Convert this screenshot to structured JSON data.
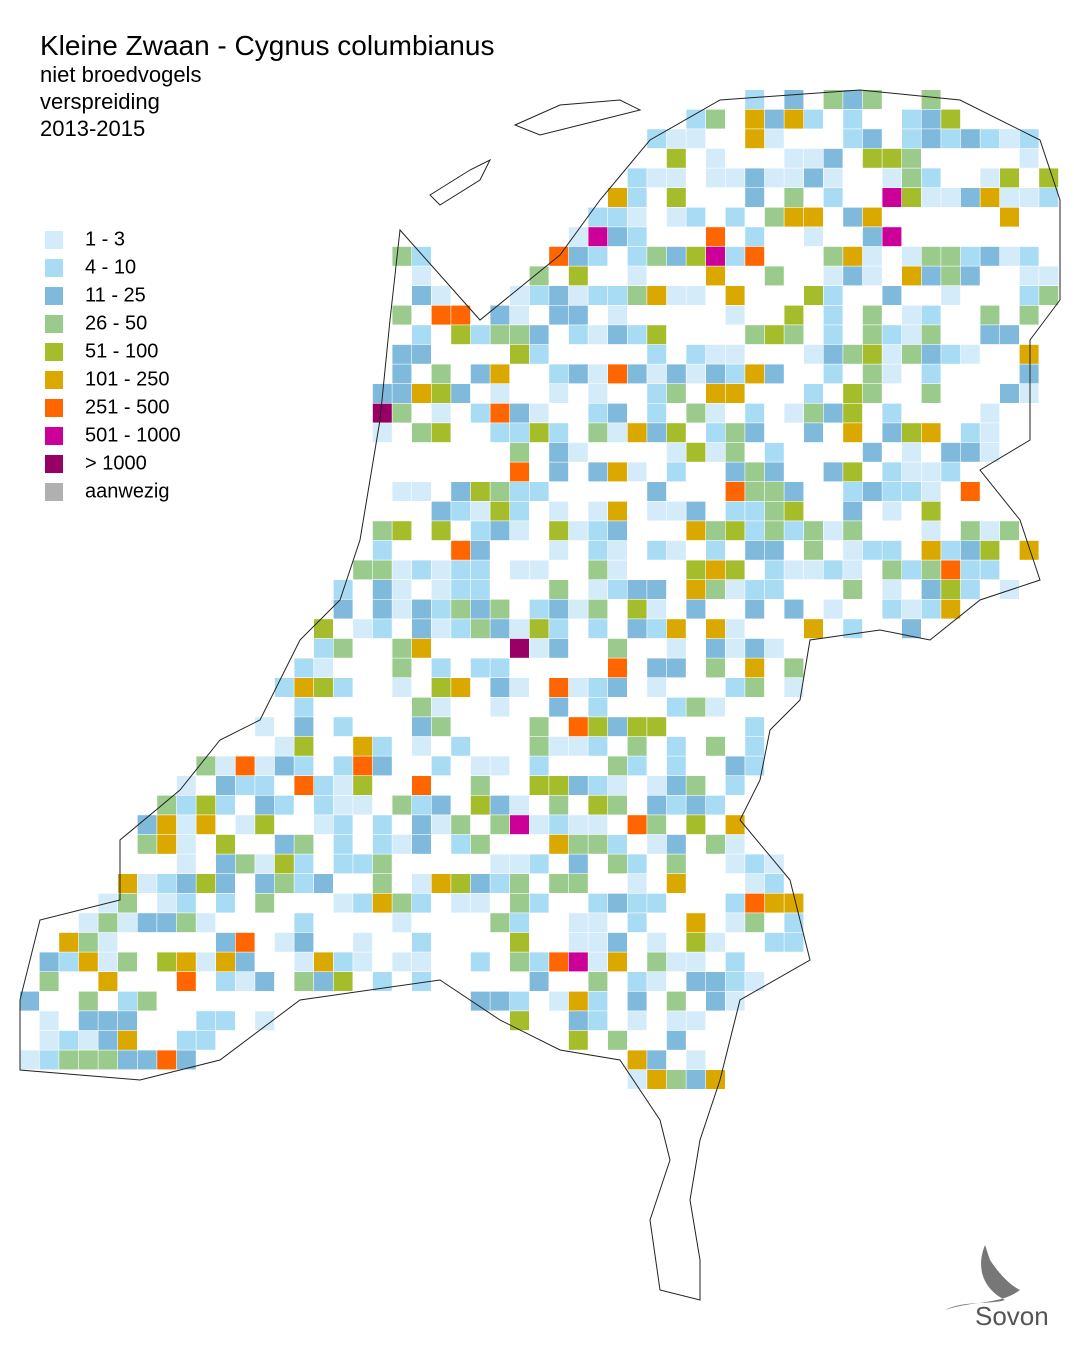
{
  "title": "Kleine Zwaan - Cygnus columbianus",
  "subtitle": [
    "niet broedvogels",
    "verspreiding",
    "2013-2015"
  ],
  "legend": [
    {
      "label": "1 - 3",
      "color": "#d4ebfa"
    },
    {
      "label": "4 - 10",
      "color": "#a8dcf5"
    },
    {
      "label": "11 - 25",
      "color": "#7fb9dc"
    },
    {
      "label": "26 - 50",
      "color": "#9acb8c"
    },
    {
      "label": "51 - 100",
      "color": "#a6bd2b"
    },
    {
      "label": "101 - 250",
      "color": "#dba800"
    },
    {
      "label": "251 - 500",
      "color": "#ff6600"
    },
    {
      "label": "501 - 1000",
      "color": "#cc0099"
    },
    {
      "label": "> 1000",
      "color": "#990066"
    },
    {
      "label": "aanwezig",
      "color": "#b0b0b0"
    }
  ],
  "logo": "Sovon"
}
